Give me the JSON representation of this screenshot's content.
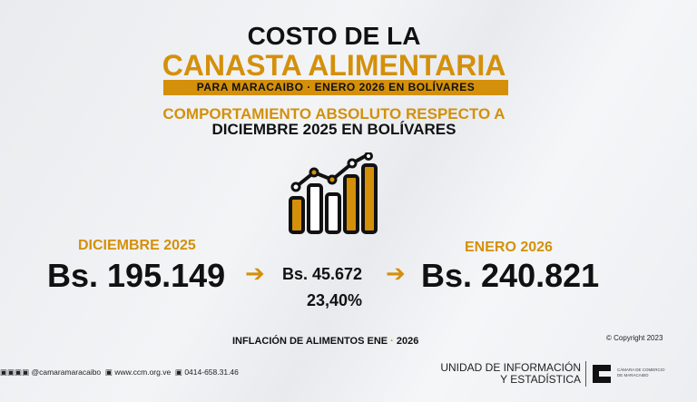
{
  "header": {
    "line1": "COSTO DE LA",
    "line2": "CANASTA ALIMENTARIA",
    "band": "PARA MARACAIBO ·  ENERO 2026 EN BOLÍVARES",
    "sub1": "COMPORTAMIENTO ABSOLUTO RESPECTO A",
    "sub2": "DICIEMBRE 2025 EN BOLÍVARES"
  },
  "icon": "bar-chart-growth-icon",
  "comparison": {
    "prev_label": "DICIEMBRE 2025",
    "prev_value": "Bs. 195.149",
    "diff_value": "Bs. 45.672",
    "diff_percent": "23,40%",
    "curr_label": "ENERO 2026",
    "curr_value": "Bs. 240.821"
  },
  "footer": {
    "title_a": "INFLACIÓN DE ALIMENTOS ENE",
    "title_sep": " · ",
    "title_b": "2026",
    "copyright": "Copyright 2023",
    "social": "@camaramaracaibo",
    "web": "www.ccm.org.ve",
    "phone": "0414-658.31.46",
    "unit_line1": "UNIDAD DE INFORMACIÓN",
    "unit_line2": "Y ESTADÍSTICA",
    "org_line1": "CÁMARA DE COMERCIO",
    "org_line2": "DE MARACAIBO"
  },
  "colors": {
    "accent": "#d4900a",
    "text": "#111111"
  }
}
